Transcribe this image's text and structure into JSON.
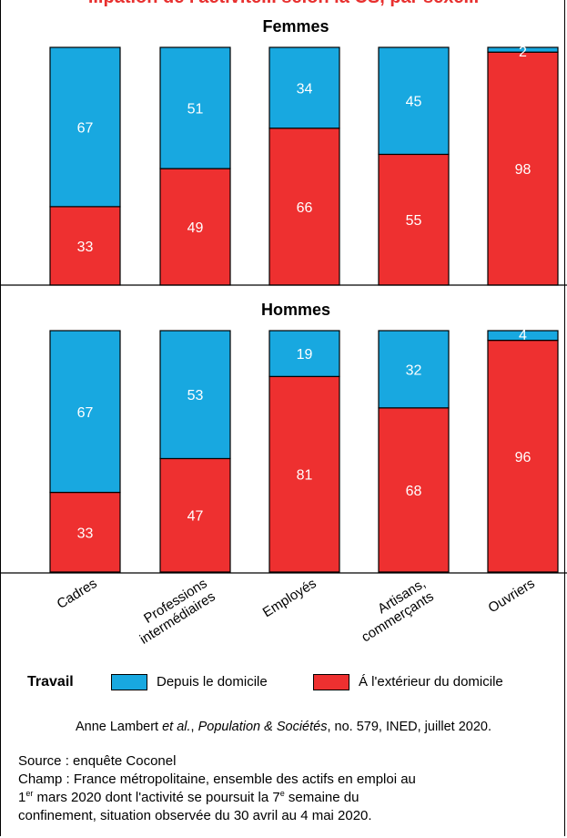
{
  "title_partial": "...pation de l'activité... selon la CS, par sexe...",
  "chart_data": {
    "type": "bar",
    "stacked": true,
    "categories": [
      "Cadres",
      "Professions intermédiaires",
      "Employés",
      "Artisans, commerçants",
      "Ouvriers"
    ],
    "category_lines": [
      [
        "Cadres"
      ],
      [
        "Professions",
        "intermédiaires"
      ],
      [
        "Employés"
      ],
      [
        "Artisans,",
        "commerçants"
      ],
      [
        "Ouvriers"
      ]
    ],
    "panels": [
      {
        "title": "Femmes",
        "series": [
          {
            "name": "Á l'extérieur du domicile",
            "values": [
              33,
              49,
              66,
              55,
              98
            ]
          },
          {
            "name": "Depuis le domicile",
            "values": [
              67,
              51,
              34,
              45,
              2
            ]
          }
        ]
      },
      {
        "title": "Hommes",
        "series": [
          {
            "name": "Á l'extérieur du domicile",
            "values": [
              33,
              47,
              81,
              68,
              96
            ]
          },
          {
            "name": "Depuis le domicile",
            "values": [
              67,
              53,
              19,
              32,
              4
            ]
          }
        ]
      }
    ],
    "ylim": [
      0,
      100
    ],
    "colors": {
      "exterieur": "#ee3030",
      "domicile": "#18a8e0"
    }
  },
  "legend": {
    "title": "Travail",
    "items": [
      {
        "label": "Depuis le domicile",
        "color": "#18a8e0"
      },
      {
        "label": "Á l'extérieur du domicile",
        "color": "#ee3030"
      }
    ]
  },
  "citation": {
    "authors": "Anne Lambert",
    "etal": "et al.",
    "journal": "Population & Sociétés",
    "rest": ", no. 579, INED, juillet 2020."
  },
  "source": {
    "line1": "Source : enquête Coconel",
    "line2": "Champ : France métropolitaine, ensemble des actifs en emploi au",
    "line3_a": "1",
    "line3_sup1": "er",
    "line3_b": " mars 2020 dont l'activité se poursuit la 7",
    "line3_sup2": "e",
    "line3_c": " semaine du",
    "line4": "confinement, situation observée du 30 avril au 4 mai 2020."
  }
}
